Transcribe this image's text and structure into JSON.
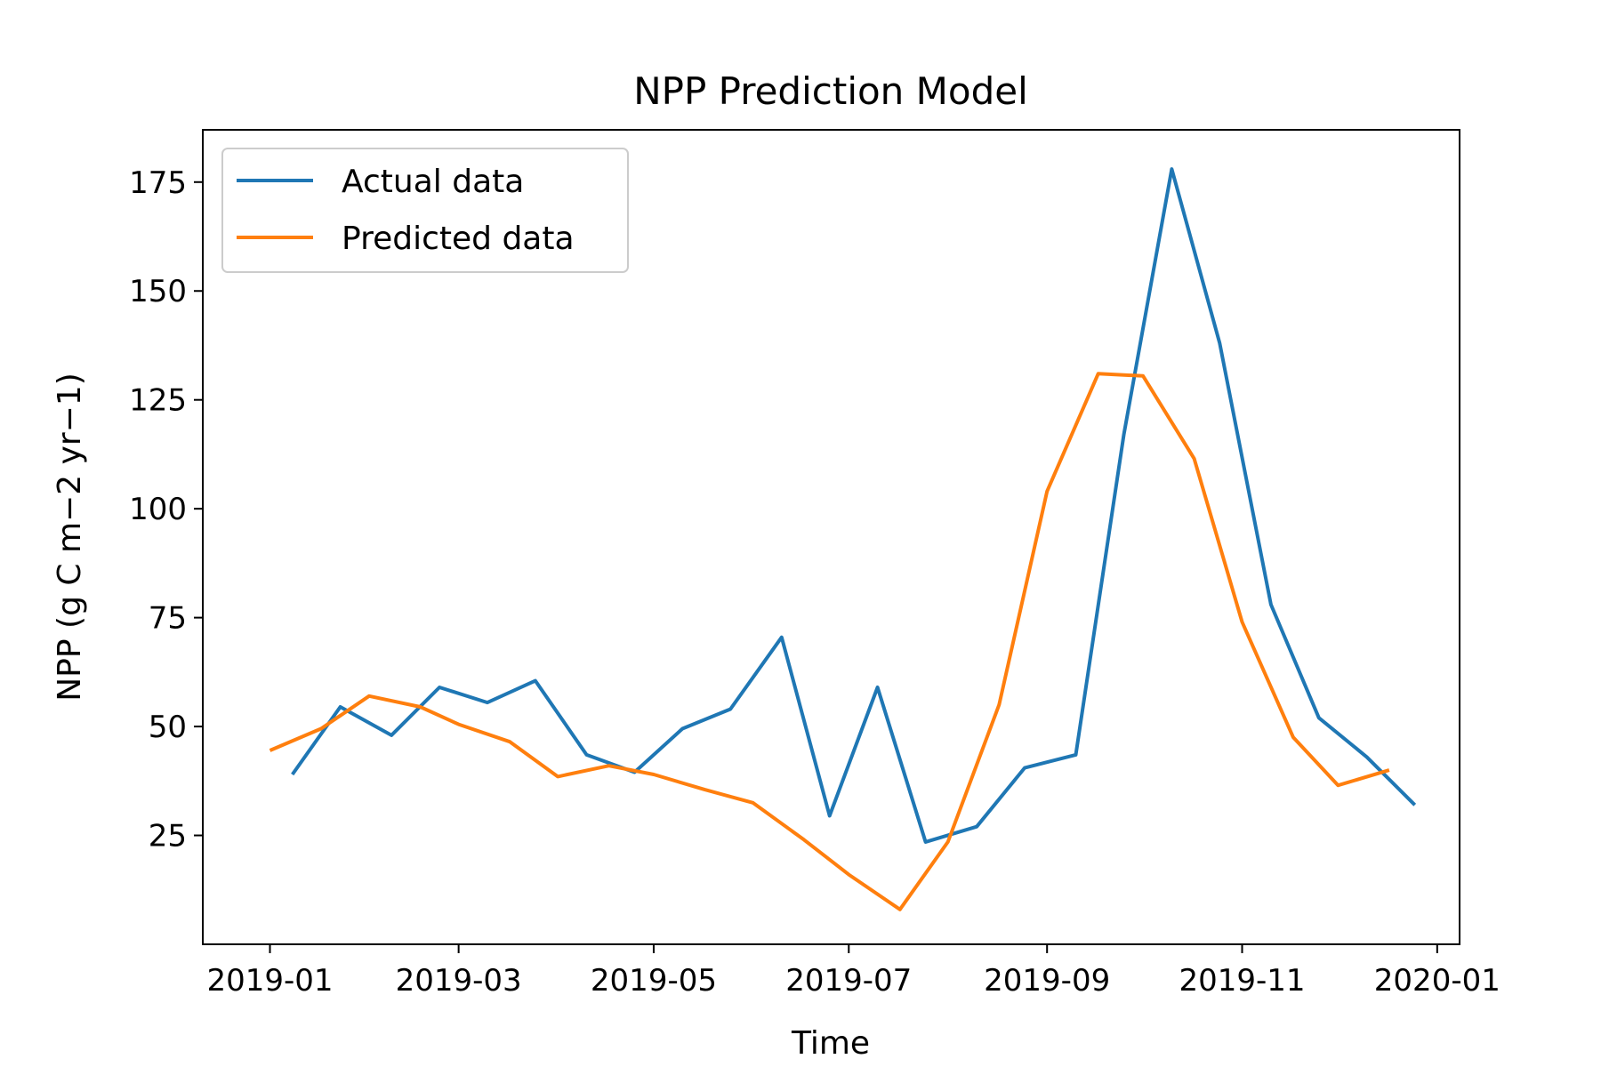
{
  "chart_data": {
    "type": "line",
    "title": "NPP Prediction Model",
    "xlabel": "Time",
    "ylabel": "NPP (g C m−2 yr−1)",
    "x_ticks": [
      "2019-01",
      "2019-03",
      "2019-05",
      "2019-07",
      "2019-09",
      "2019-11",
      "2020-01"
    ],
    "y_ticks": [
      "25",
      "50",
      "75",
      "100",
      "125",
      "150",
      "175"
    ],
    "xlim": [
      "2018-12-11",
      "2020-01-08"
    ],
    "ylim": [
      0,
      187
    ],
    "grid": false,
    "legend_position": "upper-left",
    "colors": {
      "actual": "#1f77b4",
      "predicted": "#ff7f0e"
    },
    "series": [
      {
        "name": "Actual data",
        "key": "actual",
        "points": [
          [
            "2019-01-08",
            39
          ],
          [
            "2019-01-23",
            54.5
          ],
          [
            "2019-02-08",
            48
          ],
          [
            "2019-02-23",
            59
          ],
          [
            "2019-03-10",
            55.5
          ],
          [
            "2019-03-25",
            60.5
          ],
          [
            "2019-04-10",
            43.5
          ],
          [
            "2019-04-25",
            39.5
          ],
          [
            "2019-05-10",
            49.5
          ],
          [
            "2019-05-25",
            54
          ],
          [
            "2019-06-10",
            70.5
          ],
          [
            "2019-06-25",
            29.5
          ],
          [
            "2019-07-10",
            59
          ],
          [
            "2019-07-25",
            23.5
          ],
          [
            "2019-08-10",
            27
          ],
          [
            "2019-08-25",
            40.5
          ],
          [
            "2019-09-10",
            43.5
          ],
          [
            "2019-09-25",
            117
          ],
          [
            "2019-10-10",
            178
          ],
          [
            "2019-10-25",
            138
          ],
          [
            "2019-11-10",
            78
          ],
          [
            "2019-11-25",
            52
          ],
          [
            "2019-12-10",
            43
          ],
          [
            "2019-12-25",
            32
          ]
        ]
      },
      {
        "name": "Predicted data",
        "key": "predicted",
        "points": [
          [
            "2019-01-01",
            44.5
          ],
          [
            "2019-01-17",
            49.5
          ],
          [
            "2019-02-01",
            57
          ],
          [
            "2019-02-17",
            54.5
          ],
          [
            "2019-03-01",
            50.5
          ],
          [
            "2019-03-17",
            46.5
          ],
          [
            "2019-04-01",
            38.5
          ],
          [
            "2019-04-17",
            41
          ],
          [
            "2019-05-01",
            39
          ],
          [
            "2019-05-17",
            35.5
          ],
          [
            "2019-06-01",
            32.5
          ],
          [
            "2019-06-17",
            24
          ],
          [
            "2019-07-01",
            16
          ],
          [
            "2019-07-17",
            8
          ],
          [
            "2019-08-01",
            23.5
          ],
          [
            "2019-08-17",
            55
          ],
          [
            "2019-09-01",
            104
          ],
          [
            "2019-09-17",
            131
          ],
          [
            "2019-10-01",
            130.5
          ],
          [
            "2019-10-17",
            111.5
          ],
          [
            "2019-11-01",
            74
          ],
          [
            "2019-11-17",
            47.5
          ],
          [
            "2019-12-01",
            36.5
          ],
          [
            "2019-12-17",
            40
          ]
        ]
      }
    ]
  }
}
